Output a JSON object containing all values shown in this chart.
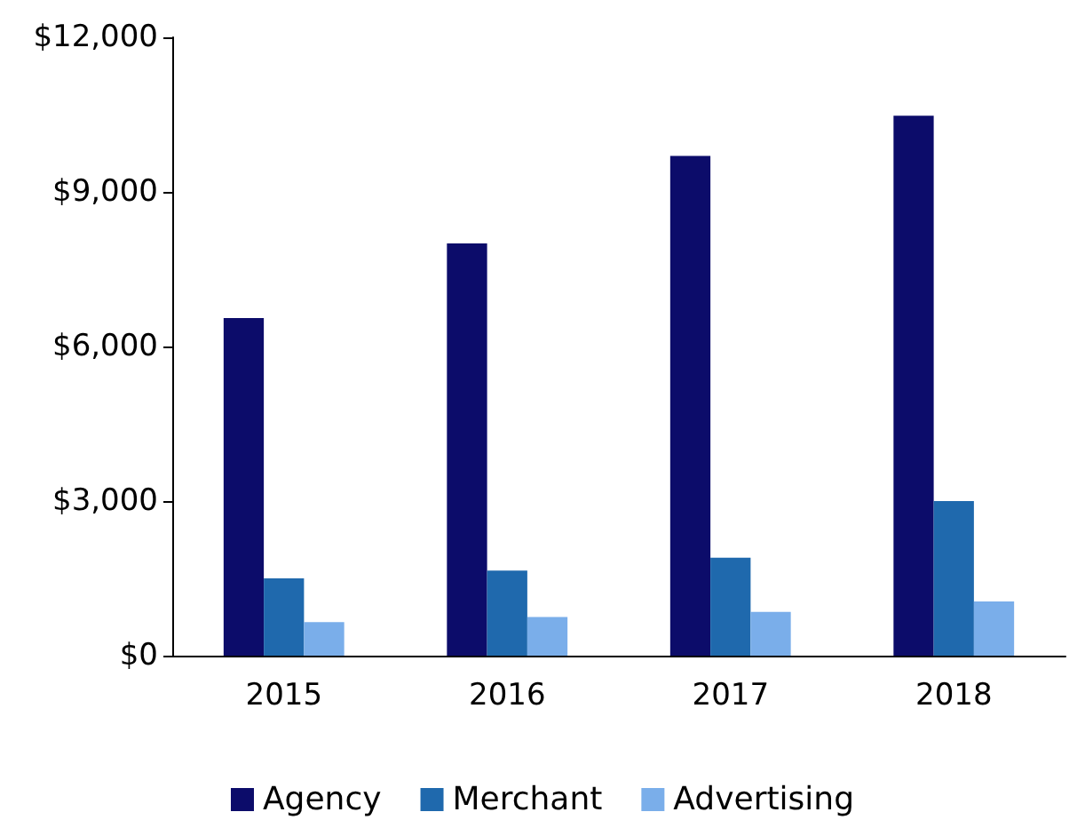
{
  "chart_data": {
    "type": "bar",
    "categories": [
      "2015",
      "2016",
      "2017",
      "2018"
    ],
    "series": [
      {
        "name": "Agency",
        "color": "#0c0c6a",
        "values": [
          6550,
          8000,
          9700,
          10480
        ]
      },
      {
        "name": "Merchant",
        "color": "#1f69ad",
        "values": [
          1500,
          1650,
          1900,
          3000
        ]
      },
      {
        "name": "Advertising",
        "color": "#7aaeea",
        "values": [
          650,
          750,
          850,
          1050
        ]
      }
    ],
    "ylim": [
      0,
      12000
    ],
    "yticks": [
      {
        "value": 0,
        "label": "$0"
      },
      {
        "value": 3000,
        "label": "$3,000"
      },
      {
        "value": 6000,
        "label": "$6,000"
      },
      {
        "value": 9000,
        "label": "$9,000"
      },
      {
        "value": 12000,
        "label": "$12,000"
      }
    ],
    "grid": false,
    "legend": "bottom"
  }
}
